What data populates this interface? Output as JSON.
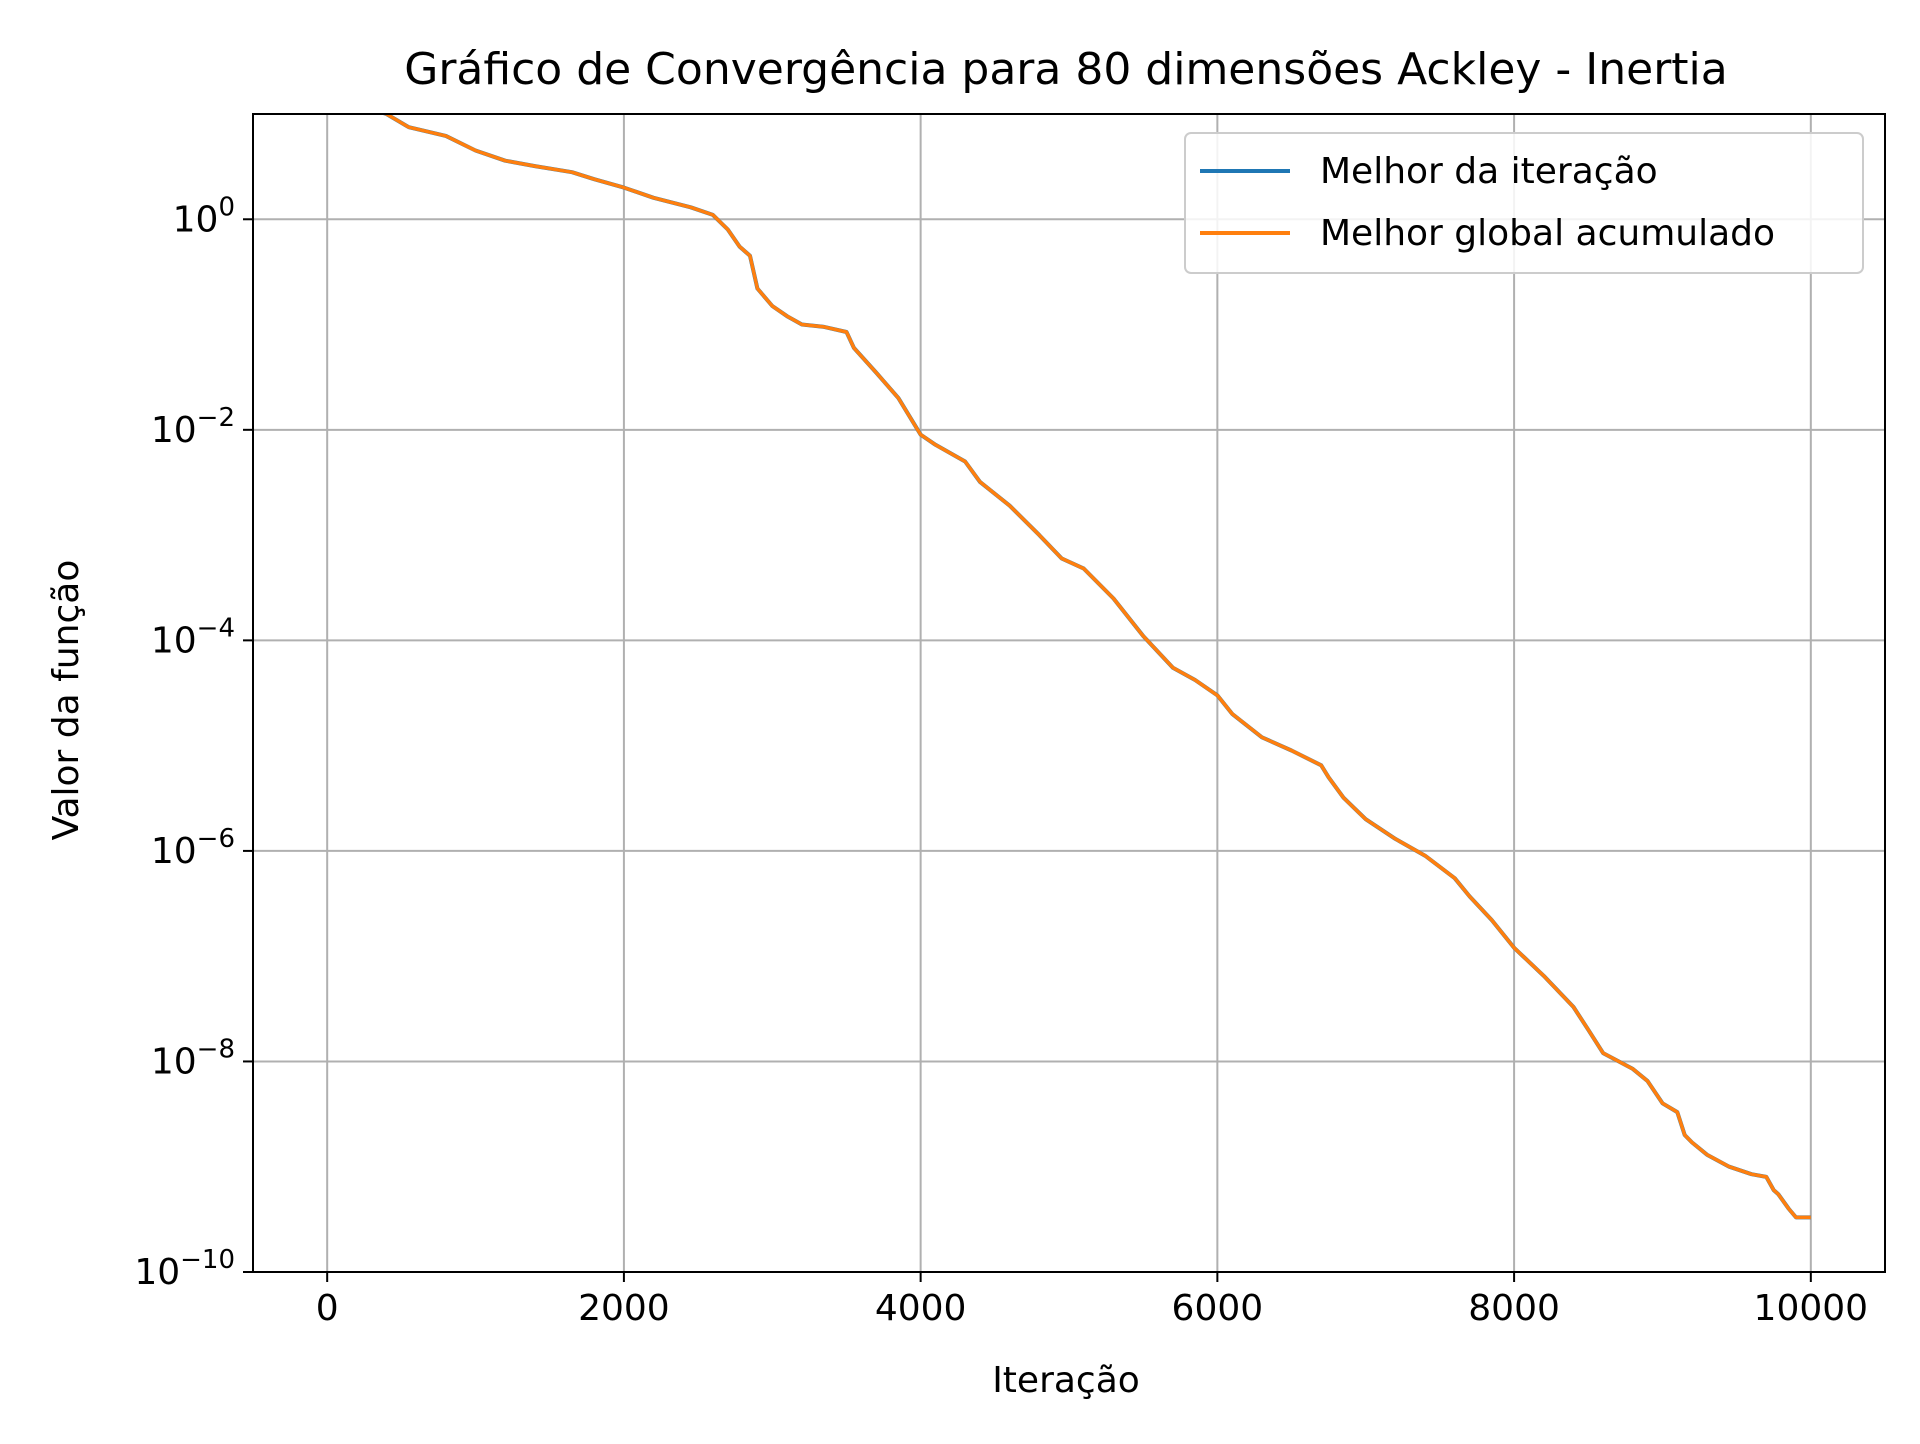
{
  "chart_data": {
    "type": "line",
    "title": "Gráfico de Convergência para 80 dimensões Ackley - Inertia",
    "xlabel": "Iteração",
    "ylabel": "Valor da função",
    "xlim": [
      -500,
      10500
    ],
    "ylim": [
      1e-10,
      10
    ],
    "yscale": "log",
    "grid": true,
    "legend_position": "top-right",
    "x_ticks": [
      0,
      2000,
      4000,
      6000,
      8000,
      10000
    ],
    "x_tick_labels": [
      "0",
      "2000",
      "4000",
      "6000",
      "8000",
      "10000"
    ],
    "y_ticks": [
      {
        "value": 1,
        "base": "10",
        "exp": "0"
      },
      {
        "value": 0.01,
        "base": "10",
        "exp": "−2"
      },
      {
        "value": 0.0001,
        "base": "10",
        "exp": "−4"
      },
      {
        "value": 1e-06,
        "base": "10",
        "exp": "−6"
      },
      {
        "value": 1e-08,
        "base": "10",
        "exp": "−8"
      },
      {
        "value": 1e-10,
        "base": "10",
        "exp": "−10"
      }
    ],
    "series": [
      {
        "name": "Melhor da iteração",
        "color": "#1f77b4",
        "x": [
          0,
          400,
          550,
          800,
          1000,
          1200,
          1400,
          1650,
          1800,
          2000,
          2200,
          2450,
          2600,
          2700,
          2780,
          2850,
          2900,
          3000,
          3100,
          3200,
          3350,
          3500,
          3550,
          3700,
          3850,
          4000,
          4100,
          4300,
          4400,
          4600,
          4800,
          4950,
          5100,
          5300,
          5500,
          5700,
          5850,
          6000,
          6100,
          6300,
          6500,
          6700,
          6750,
          6850,
          7000,
          7200,
          7400,
          7600,
          7700,
          7850,
          8000,
          8200,
          8400,
          8500,
          8600,
          8800,
          8900,
          9000,
          9100,
          9150,
          9200,
          9300,
          9450,
          9600,
          9700,
          9750,
          9780,
          9850,
          9900,
          10000
        ],
        "y": [
          15,
          10,
          7.5,
          6.2,
          4.5,
          3.6,
          3.2,
          2.8,
          2.4,
          2.0,
          1.6,
          1.3,
          1.1,
          0.8,
          0.55,
          0.45,
          0.22,
          0.15,
          0.12,
          0.1,
          0.095,
          0.085,
          0.06,
          0.035,
          0.02,
          0.009,
          0.0072,
          0.005,
          0.0032,
          0.0019,
          0.001,
          0.0006,
          0.00048,
          0.00025,
          0.00011,
          5.5e-05,
          4.2e-05,
          3e-05,
          2e-05,
          1.2e-05,
          9e-06,
          6.5e-06,
          5e-06,
          3.2e-06,
          2e-06,
          1.3e-06,
          9e-07,
          5.5e-07,
          3.7e-07,
          2.2e-07,
          1.2e-07,
          6.5e-08,
          3.3e-08,
          2e-08,
          1.2e-08,
          8.5e-09,
          6.5e-09,
          4e-09,
          3.3e-09,
          2e-09,
          1.7e-09,
          1.3e-09,
          1e-09,
          8.5e-10,
          8e-10,
          6e-10,
          5.5e-10,
          4e-10,
          3.3e-10,
          3.3e-10
        ]
      },
      {
        "name": "Melhor global acumulado",
        "color": "#ff7f0e",
        "x": [
          0,
          400,
          550,
          800,
          1000,
          1200,
          1400,
          1650,
          1800,
          2000,
          2200,
          2450,
          2600,
          2700,
          2780,
          2850,
          2900,
          3000,
          3100,
          3200,
          3350,
          3500,
          3550,
          3700,
          3850,
          4000,
          4100,
          4300,
          4400,
          4600,
          4800,
          4950,
          5100,
          5300,
          5500,
          5700,
          5850,
          6000,
          6100,
          6300,
          6500,
          6700,
          6750,
          6850,
          7000,
          7200,
          7400,
          7600,
          7700,
          7850,
          8000,
          8200,
          8400,
          8500,
          8600,
          8800,
          8900,
          9000,
          9100,
          9150,
          9200,
          9300,
          9450,
          9600,
          9700,
          9750,
          9780,
          9850,
          9900,
          10000
        ],
        "y": [
          15,
          10,
          7.5,
          6.2,
          4.5,
          3.6,
          3.2,
          2.8,
          2.4,
          2.0,
          1.6,
          1.3,
          1.1,
          0.8,
          0.55,
          0.45,
          0.22,
          0.15,
          0.12,
          0.1,
          0.095,
          0.085,
          0.06,
          0.035,
          0.02,
          0.009,
          0.0072,
          0.005,
          0.0032,
          0.0019,
          0.001,
          0.0006,
          0.00048,
          0.00025,
          0.00011,
          5.5e-05,
          4.2e-05,
          3e-05,
          2e-05,
          1.2e-05,
          9e-06,
          6.5e-06,
          5e-06,
          3.2e-06,
          2e-06,
          1.3e-06,
          9e-07,
          5.5e-07,
          3.7e-07,
          2.2e-07,
          1.2e-07,
          6.5e-08,
          3.3e-08,
          2e-08,
          1.2e-08,
          8.5e-09,
          6.5e-09,
          4e-09,
          3.3e-09,
          2e-09,
          1.7e-09,
          1.3e-09,
          1e-09,
          8.5e-10,
          8e-10,
          6e-10,
          5.5e-10,
          4e-10,
          3.3e-10,
          3.3e-10
        ]
      }
    ]
  }
}
